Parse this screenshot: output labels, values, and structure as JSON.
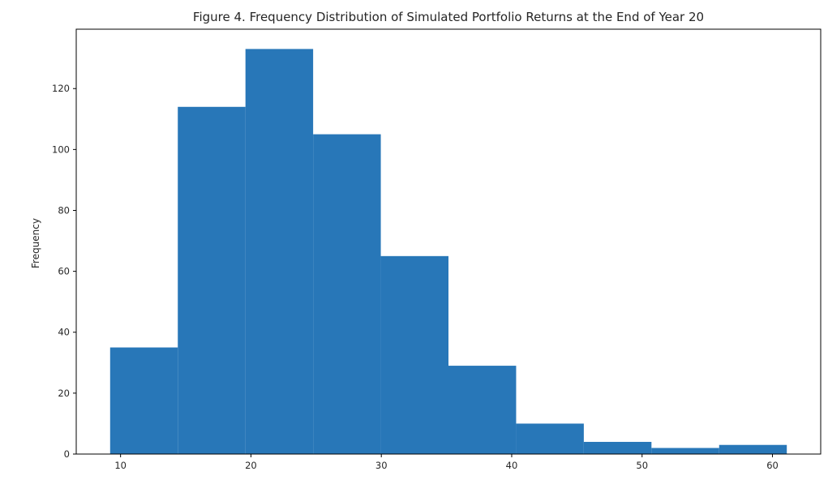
{
  "chart_data": {
    "type": "bar",
    "title": "Figure 4. Frequency Distribution of Simulated Portfolio Returns at the End of Year 20",
    "xlabel": "",
    "ylabel": "Frequency",
    "xlim": [
      6.6,
      63.7
    ],
    "ylim": [
      0,
      139.5
    ],
    "xticks": [
      10,
      20,
      30,
      40,
      50,
      60
    ],
    "yticks": [
      0,
      20,
      40,
      60,
      80,
      100,
      120
    ],
    "bin_edges": [
      9.2,
      14.39,
      19.58,
      24.77,
      29.96,
      35.15,
      40.34,
      45.53,
      50.72,
      55.91,
      61.1
    ],
    "values": [
      35,
      114,
      133,
      105,
      65,
      29,
      10,
      4,
      2,
      3
    ],
    "bar_color": "#2877b8",
    "grid": false,
    "legend": "none"
  }
}
